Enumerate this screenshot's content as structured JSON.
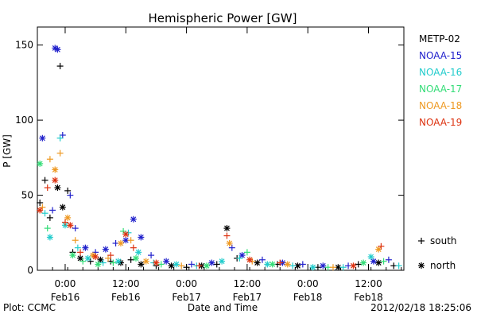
{
  "chart_data": {
    "type": "scatter",
    "title": "Hemispheric Power [GW]",
    "ylabel": "P [GW]",
    "xlabel": "Date and Time",
    "ylim": [
      0,
      162
    ],
    "y_ticks": [
      0,
      50,
      100,
      150
    ],
    "xlim": [
      "2012-02-15 18:30",
      "2012-02-18 19:00"
    ],
    "x_ticks": [
      {
        "time": "2012-02-16 00:00",
        "label": "0:00",
        "sublabel": "Feb16"
      },
      {
        "time": "2012-02-16 12:00",
        "label": "12:00",
        "sublabel": "Feb16"
      },
      {
        "time": "2012-02-17 00:00",
        "label": "0:00",
        "sublabel": "Feb17"
      },
      {
        "time": "2012-02-17 12:00",
        "label": "12:00",
        "sublabel": "Feb17"
      },
      {
        "time": "2012-02-18 00:00",
        "label": "0:00",
        "sublabel": "Feb18"
      },
      {
        "time": "2012-02-18 12:00",
        "label": "12:00",
        "sublabel": "Feb18"
      }
    ],
    "legend_placement": "right",
    "marker_legend": [
      {
        "symbol": "+",
        "label": "south"
      },
      {
        "symbol": "*",
        "label": "north"
      }
    ],
    "series": [
      {
        "name": "METP-02",
        "color": "#000000",
        "points": [
          [
            "2012-02-15 19:00",
            45,
            "+"
          ],
          [
            "2012-02-15 20:00",
            60,
            "+"
          ],
          [
            "2012-02-15 21:00",
            35,
            "+"
          ],
          [
            "2012-02-15 22:30",
            55,
            "*"
          ],
          [
            "2012-02-15 23:00",
            136,
            "+"
          ],
          [
            "2012-02-15 23:30",
            42,
            "*"
          ],
          [
            "2012-02-16 00:30",
            53,
            "+"
          ],
          [
            "2012-02-16 01:30",
            12,
            "+"
          ],
          [
            "2012-02-16 03:00",
            8,
            "*"
          ],
          [
            "2012-02-16 05:00",
            6,
            "+"
          ],
          [
            "2012-02-16 07:00",
            7,
            "*"
          ],
          [
            "2012-02-16 09:00",
            6,
            "+"
          ],
          [
            "2012-02-16 11:00",
            5,
            "*"
          ],
          [
            "2012-02-16 13:00",
            7,
            "+"
          ],
          [
            "2012-02-16 15:00",
            4,
            "*"
          ],
          [
            "2012-02-16 18:00",
            3,
            "+"
          ],
          [
            "2012-02-16 21:00",
            3,
            "*"
          ],
          [
            "2012-02-17 00:00",
            2,
            "+"
          ],
          [
            "2012-02-17 03:00",
            3,
            "*"
          ],
          [
            "2012-02-17 06:00",
            4,
            "+"
          ],
          [
            "2012-02-17 08:00",
            28,
            "*"
          ],
          [
            "2012-02-17 10:00",
            8,
            "+"
          ],
          [
            "2012-02-17 14:00",
            5,
            "*"
          ],
          [
            "2012-02-17 18:00",
            4,
            "+"
          ],
          [
            "2012-02-17 22:00",
            3,
            "*"
          ],
          [
            "2012-02-18 02:00",
            2,
            "+"
          ],
          [
            "2012-02-18 06:00",
            2,
            "*"
          ],
          [
            "2012-02-18 10:00",
            4,
            "+"
          ],
          [
            "2012-02-18 14:00",
            5,
            "*"
          ],
          [
            "2012-02-18 17:00",
            3,
            "+"
          ]
        ]
      },
      {
        "name": "NOAA-15",
        "color": "#2222cc",
        "points": [
          [
            "2012-02-15 19:30",
            88,
            "*"
          ],
          [
            "2012-02-15 21:30",
            40,
            "+"
          ],
          [
            "2012-02-15 22:00",
            148,
            "*"
          ],
          [
            "2012-02-15 22:30",
            147,
            "*"
          ],
          [
            "2012-02-15 23:30",
            90,
            "+"
          ],
          [
            "2012-02-16 01:00",
            50,
            "+"
          ],
          [
            "2012-02-16 02:00",
            28,
            "+"
          ],
          [
            "2012-02-16 04:00",
            15,
            "*"
          ],
          [
            "2012-02-16 06:00",
            12,
            "+"
          ],
          [
            "2012-02-16 08:00",
            14,
            "*"
          ],
          [
            "2012-02-16 10:00",
            18,
            "+"
          ],
          [
            "2012-02-16 12:00",
            20,
            "*"
          ],
          [
            "2012-02-16 13:30",
            34,
            "*"
          ],
          [
            "2012-02-16 15:00",
            22,
            "*"
          ],
          [
            "2012-02-16 17:00",
            10,
            "+"
          ],
          [
            "2012-02-16 20:00",
            6,
            "*"
          ],
          [
            "2012-02-17 01:00",
            4,
            "+"
          ],
          [
            "2012-02-17 05:00",
            5,
            "*"
          ],
          [
            "2012-02-17 09:00",
            15,
            "+"
          ],
          [
            "2012-02-17 11:00",
            10,
            "*"
          ],
          [
            "2012-02-17 15:00",
            7,
            "+"
          ],
          [
            "2012-02-17 19:00",
            5,
            "*"
          ],
          [
            "2012-02-17 23:00",
            4,
            "+"
          ],
          [
            "2012-02-18 03:00",
            3,
            "*"
          ],
          [
            "2012-02-18 08:00",
            3,
            "+"
          ],
          [
            "2012-02-18 13:00",
            6,
            "*"
          ],
          [
            "2012-02-18 16:00",
            7,
            "+"
          ]
        ]
      },
      {
        "name": "NOAA-16",
        "color": "#22cccc",
        "points": [
          [
            "2012-02-15 20:00",
            38,
            "+"
          ],
          [
            "2012-02-15 21:00",
            22,
            "*"
          ],
          [
            "2012-02-15 23:00",
            88,
            "+"
          ],
          [
            "2012-02-16 00:00",
            30,
            "*"
          ],
          [
            "2012-02-16 02:30",
            15,
            "+"
          ],
          [
            "2012-02-16 04:30",
            8,
            "*"
          ],
          [
            "2012-02-16 07:30",
            5,
            "+"
          ],
          [
            "2012-02-16 10:30",
            6,
            "*"
          ],
          [
            "2012-02-16 12:30",
            25,
            "+"
          ],
          [
            "2012-02-16 14:30",
            12,
            "*"
          ],
          [
            "2012-02-16 17:30",
            5,
            "+"
          ],
          [
            "2012-02-16 22:00",
            4,
            "*"
          ],
          [
            "2012-02-17 02:00",
            3,
            "+"
          ],
          [
            "2012-02-17 07:00",
            6,
            "*"
          ],
          [
            "2012-02-17 10:30",
            8,
            "+"
          ],
          [
            "2012-02-17 16:00",
            4,
            "*"
          ],
          [
            "2012-02-17 21:00",
            3,
            "+"
          ],
          [
            "2012-02-18 01:00",
            2,
            "*"
          ],
          [
            "2012-02-18 07:00",
            2,
            "+"
          ],
          [
            "2012-02-18 12:30",
            9,
            "*"
          ],
          [
            "2012-02-18 18:00",
            3,
            "+"
          ]
        ]
      },
      {
        "name": "NOAA-17",
        "color": "#33dd77",
        "points": [
          [
            "2012-02-15 19:00",
            71,
            "*"
          ],
          [
            "2012-02-15 20:30",
            28,
            "+"
          ],
          [
            "2012-02-16 01:30",
            10,
            "*"
          ],
          [
            "2012-02-16 03:30",
            6,
            "+"
          ],
          [
            "2012-02-16 06:30",
            4,
            "*"
          ],
          [
            "2012-02-16 09:30",
            5,
            "+"
          ],
          [
            "2012-02-16 11:30",
            26,
            "+"
          ],
          [
            "2012-02-16 14:00",
            8,
            "*"
          ],
          [
            "2012-02-16 19:00",
            4,
            "+"
          ],
          [
            "2012-02-17 04:00",
            3,
            "*"
          ],
          [
            "2012-02-17 12:00",
            12,
            "+"
          ],
          [
            "2012-02-17 17:00",
            4,
            "*"
          ],
          [
            "2012-02-18 04:00",
            2,
            "+"
          ],
          [
            "2012-02-18 11:00",
            5,
            "*"
          ],
          [
            "2012-02-18 15:00",
            6,
            "+"
          ]
        ]
      },
      {
        "name": "NOAA-18",
        "color": "#ee9922",
        "points": [
          [
            "2012-02-15 19:30",
            42,
            "+"
          ],
          [
            "2012-02-15 21:00",
            74,
            "+"
          ],
          [
            "2012-02-15 22:00",
            67,
            "*"
          ],
          [
            "2012-02-15 23:00",
            78,
            "+"
          ],
          [
            "2012-02-16 00:30",
            35,
            "*"
          ],
          [
            "2012-02-16 02:00",
            20,
            "+"
          ],
          [
            "2012-02-16 05:30",
            10,
            "*"
          ],
          [
            "2012-02-16 08:30",
            8,
            "+"
          ],
          [
            "2012-02-16 11:00",
            18,
            "*"
          ],
          [
            "2012-02-16 13:00",
            20,
            "+"
          ],
          [
            "2012-02-16 16:00",
            6,
            "*"
          ],
          [
            "2012-02-16 23:00",
            3,
            "+"
          ],
          [
            "2012-02-17 08:30",
            18,
            "*"
          ],
          [
            "2012-02-17 13:00",
            6,
            "+"
          ],
          [
            "2012-02-17 20:00",
            4,
            "*"
          ],
          [
            "2012-02-18 05:00",
            2,
            "+"
          ],
          [
            "2012-02-18 14:00",
            14,
            "*"
          ]
        ]
      },
      {
        "name": "NOAA-19",
        "color": "#dd3311",
        "points": [
          [
            "2012-02-15 19:00",
            40,
            "*"
          ],
          [
            "2012-02-15 20:30",
            55,
            "+"
          ],
          [
            "2012-02-15 22:00",
            60,
            "*"
          ],
          [
            "2012-02-16 00:00",
            32,
            "+"
          ],
          [
            "2012-02-16 01:00",
            30,
            "*"
          ],
          [
            "2012-02-16 03:00",
            12,
            "+"
          ],
          [
            "2012-02-16 06:00",
            9,
            "*"
          ],
          [
            "2012-02-16 09:00",
            10,
            "+"
          ],
          [
            "2012-02-16 12:00",
            24,
            "*"
          ],
          [
            "2012-02-16 13:30",
            15,
            "+"
          ],
          [
            "2012-02-16 18:00",
            5,
            "*"
          ],
          [
            "2012-02-17 02:30",
            3,
            "+"
          ],
          [
            "2012-02-17 08:00",
            23,
            "+"
          ],
          [
            "2012-02-17 12:30",
            7,
            "*"
          ],
          [
            "2012-02-17 18:30",
            5,
            "+"
          ],
          [
            "2012-02-18 09:00",
            3,
            "*"
          ],
          [
            "2012-02-18 14:30",
            16,
            "+"
          ]
        ]
      }
    ]
  },
  "footer": {
    "plot_credit": "Plot: CCMC",
    "timestamp": "2012/02/18 18:25:06"
  }
}
